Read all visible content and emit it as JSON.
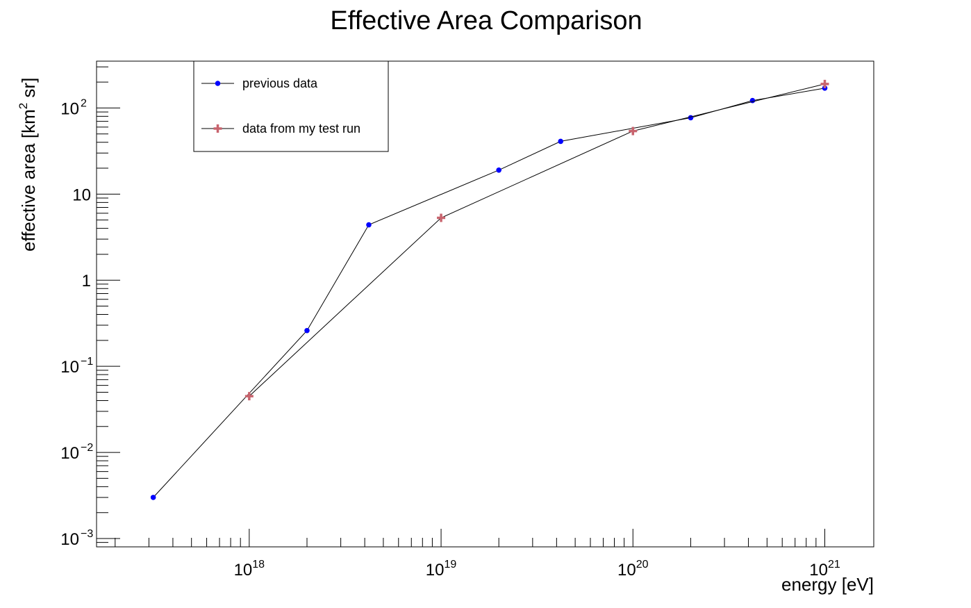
{
  "chart_data": {
    "type": "line",
    "title": "Effective Area Comparison",
    "xlabel": "energy [eV]",
    "ylabel_parts": [
      "effective area [km",
      "2",
      " sr]"
    ],
    "xscale": "log",
    "yscale": "log",
    "xlim": [
      1.6e+17,
      1.8e+21
    ],
    "ylim": [
      0.0008,
      350
    ],
    "grid": false,
    "legend_position": "top-left",
    "x_ticks": [
      {
        "base": "10",
        "exp": "18",
        "value": 1e+18
      },
      {
        "base": "10",
        "exp": "19",
        "value": 1e+19
      },
      {
        "base": "10",
        "exp": "20",
        "value": 1e+20
      },
      {
        "base": "10",
        "exp": "21",
        "value": 1e+21
      }
    ],
    "y_ticks": [
      {
        "base": "10",
        "exp": "−3",
        "value": 0.001
      },
      {
        "base": "10",
        "exp": "−2",
        "value": 0.01
      },
      {
        "base": "10",
        "exp": "−1",
        "value": 0.1
      },
      {
        "base": "1",
        "exp": "",
        "value": 1
      },
      {
        "base": "10",
        "exp": "",
        "value": 10
      },
      {
        "base": "10",
        "exp": "2",
        "value": 100
      }
    ],
    "series": [
      {
        "name": "previous data",
        "color": "#0000ff",
        "marker": "circle",
        "x": [
          3.16e+17,
          2e+18,
          4.2e+18,
          2e+19,
          4.2e+19,
          2e+20,
          4.2e+20,
          1e+21
        ],
        "y": [
          0.003,
          0.26,
          4.4,
          19,
          41,
          77,
          122,
          170
        ]
      },
      {
        "name": "data from my test run",
        "color": "#c8646e",
        "marker": "plus",
        "x": [
          1e+18,
          1e+19,
          1e+20,
          1e+21
        ],
        "y": [
          0.045,
          5.3,
          54,
          190
        ]
      }
    ]
  }
}
